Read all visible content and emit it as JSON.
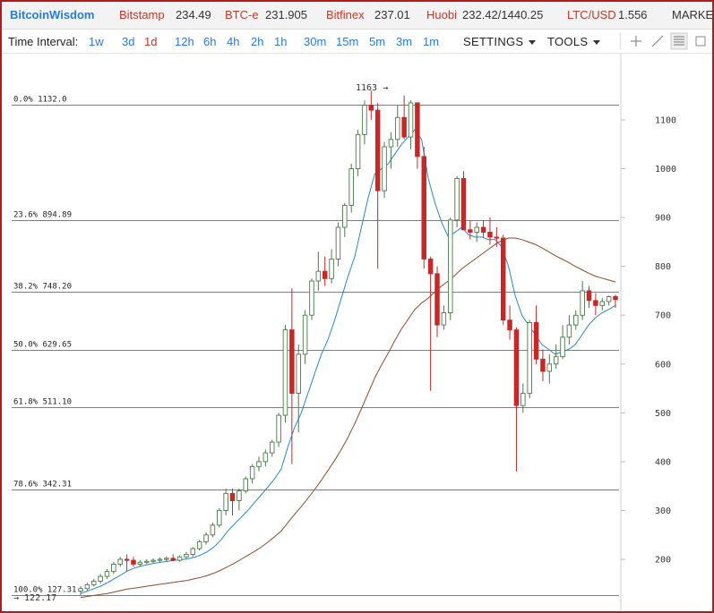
{
  "ticker": {
    "brand": "BitcoinWisdom",
    "exchanges": [
      {
        "name": "Bitstamp",
        "value": "234.49"
      },
      {
        "name": "BTC-e",
        "value": "231.905"
      },
      {
        "name": "Bitfinex",
        "value": "237.01"
      },
      {
        "name": "Huobi",
        "value": "232.42/1440.25"
      },
      {
        "name": "LTC/USD",
        "value": "1.556"
      }
    ],
    "markets": "MARKET"
  },
  "toolbar": {
    "time_interval_label": "Time Interval:",
    "intervals": [
      "1w",
      "3d",
      "1d",
      "12h",
      "6h",
      "4h",
      "2h",
      "1h",
      "30m",
      "15m",
      "5m",
      "3m",
      "1m"
    ],
    "active_interval": "1d",
    "settings_label": "SETTINGS",
    "tools_label": "TOOLS",
    "tool_icons": [
      "crosshair-icon",
      "draw-line-icon",
      "fibonacci-icon"
    ]
  },
  "chart": {
    "peak_marker": "1163",
    "low_marker": "122.17",
    "y_ticks": [
      "1100",
      "1000",
      "900",
      "800",
      "700",
      "600",
      "500",
      "400",
      "300",
      "200"
    ],
    "fib_levels": [
      {
        "label": "0.0% 1132.0",
        "price": 1132.0
      },
      {
        "label": "23.6% 894.89",
        "price": 894.89
      },
      {
        "label": "38.2% 748.20",
        "price": 748.2
      },
      {
        "label": "50.0% 629.65",
        "price": 629.65
      },
      {
        "label": "61.8% 511.10",
        "price": 511.1
      },
      {
        "label": "78.6% 342.31",
        "price": 342.31
      },
      {
        "label": "100.0% 127.31",
        "price": 127.31
      }
    ],
    "colors": {
      "up": "#4a7a4a",
      "down": "#c62828",
      "ema_fast": "#2a86c6",
      "ema_slow": "#8b4a2b"
    }
  },
  "chart_data": {
    "type": "candlestick",
    "title": "",
    "xlabel": "",
    "ylabel": "",
    "ylim": [
      122.17,
      1163
    ],
    "grid": false,
    "candles": [
      {
        "o": 135,
        "h": 145,
        "l": 127,
        "c": 140
      },
      {
        "o": 140,
        "h": 152,
        "l": 136,
        "c": 148
      },
      {
        "o": 148,
        "h": 160,
        "l": 144,
        "c": 155
      },
      {
        "o": 155,
        "h": 170,
        "l": 150,
        "c": 165
      },
      {
        "o": 165,
        "h": 180,
        "l": 160,
        "c": 175
      },
      {
        "o": 175,
        "h": 195,
        "l": 170,
        "c": 190
      },
      {
        "o": 190,
        "h": 205,
        "l": 185,
        "c": 200
      },
      {
        "o": 200,
        "h": 210,
        "l": 175,
        "c": 198
      },
      {
        "o": 198,
        "h": 205,
        "l": 185,
        "c": 190
      },
      {
        "o": 190,
        "h": 198,
        "l": 185,
        "c": 194
      },
      {
        "o": 194,
        "h": 200,
        "l": 190,
        "c": 196
      },
      {
        "o": 196,
        "h": 202,
        "l": 192,
        "c": 198
      },
      {
        "o": 198,
        "h": 204,
        "l": 194,
        "c": 200
      },
      {
        "o": 200,
        "h": 206,
        "l": 196,
        "c": 202
      },
      {
        "o": 202,
        "h": 210,
        "l": 196,
        "c": 198
      },
      {
        "o": 198,
        "h": 208,
        "l": 195,
        "c": 205
      },
      {
        "o": 205,
        "h": 215,
        "l": 200,
        "c": 210
      },
      {
        "o": 210,
        "h": 225,
        "l": 205,
        "c": 222
      },
      {
        "o": 222,
        "h": 240,
        "l": 218,
        "c": 236
      },
      {
        "o": 236,
        "h": 255,
        "l": 230,
        "c": 250
      },
      {
        "o": 250,
        "h": 275,
        "l": 245,
        "c": 270
      },
      {
        "o": 270,
        "h": 305,
        "l": 265,
        "c": 300
      },
      {
        "o": 300,
        "h": 345,
        "l": 290,
        "c": 335
      },
      {
        "o": 335,
        "h": 345,
        "l": 290,
        "c": 320
      },
      {
        "o": 320,
        "h": 345,
        "l": 300,
        "c": 340
      },
      {
        "o": 340,
        "h": 370,
        "l": 335,
        "c": 365
      },
      {
        "o": 365,
        "h": 395,
        "l": 355,
        "c": 390
      },
      {
        "o": 390,
        "h": 410,
        "l": 380,
        "c": 400
      },
      {
        "o": 400,
        "h": 425,
        "l": 390,
        "c": 418
      },
      {
        "o": 418,
        "h": 445,
        "l": 410,
        "c": 440
      },
      {
        "o": 440,
        "h": 500,
        "l": 430,
        "c": 495
      },
      {
        "o": 495,
        "h": 680,
        "l": 480,
        "c": 670
      },
      {
        "o": 670,
        "h": 755,
        "l": 395,
        "c": 540
      },
      {
        "o": 540,
        "h": 640,
        "l": 460,
        "c": 620
      },
      {
        "o": 620,
        "h": 710,
        "l": 600,
        "c": 700
      },
      {
        "o": 700,
        "h": 775,
        "l": 690,
        "c": 770
      },
      {
        "o": 770,
        "h": 830,
        "l": 750,
        "c": 790
      },
      {
        "o": 790,
        "h": 820,
        "l": 760,
        "c": 775
      },
      {
        "o": 775,
        "h": 835,
        "l": 765,
        "c": 815
      },
      {
        "o": 815,
        "h": 890,
        "l": 800,
        "c": 880
      },
      {
        "o": 880,
        "h": 930,
        "l": 860,
        "c": 925
      },
      {
        "o": 925,
        "h": 1010,
        "l": 910,
        "c": 1000
      },
      {
        "o": 1000,
        "h": 1080,
        "l": 985,
        "c": 1070
      },
      {
        "o": 1070,
        "h": 1140,
        "l": 1050,
        "c": 1130
      },
      {
        "o": 1130,
        "h": 1160,
        "l": 1100,
        "c": 1120
      },
      {
        "o": 1120,
        "h": 1135,
        "l": 795,
        "c": 955
      },
      {
        "o": 955,
        "h": 1055,
        "l": 940,
        "c": 1045
      },
      {
        "o": 1045,
        "h": 1075,
        "l": 1000,
        "c": 1060
      },
      {
        "o": 1060,
        "h": 1130,
        "l": 1045,
        "c": 1105
      },
      {
        "o": 1105,
        "h": 1150,
        "l": 1060,
        "c": 1065
      },
      {
        "o": 1065,
        "h": 1140,
        "l": 1040,
        "c": 1135
      },
      {
        "o": 1135,
        "h": 1135,
        "l": 1000,
        "c": 1025
      },
      {
        "o": 1025,
        "h": 1045,
        "l": 795,
        "c": 815
      },
      {
        "o": 815,
        "h": 820,
        "l": 545,
        "c": 785
      },
      {
        "o": 785,
        "h": 800,
        "l": 655,
        "c": 680
      },
      {
        "o": 680,
        "h": 720,
        "l": 670,
        "c": 705
      },
      {
        "o": 705,
        "h": 900,
        "l": 690,
        "c": 895
      },
      {
        "o": 895,
        "h": 985,
        "l": 880,
        "c": 980
      },
      {
        "o": 980,
        "h": 995,
        "l": 875,
        "c": 875
      },
      {
        "o": 875,
        "h": 895,
        "l": 855,
        "c": 870
      },
      {
        "o": 870,
        "h": 890,
        "l": 850,
        "c": 880
      },
      {
        "o": 880,
        "h": 895,
        "l": 860,
        "c": 870
      },
      {
        "o": 870,
        "h": 900,
        "l": 845,
        "c": 860
      },
      {
        "o": 860,
        "h": 880,
        "l": 840,
        "c": 858
      },
      {
        "o": 858,
        "h": 865,
        "l": 680,
        "c": 690
      },
      {
        "o": 690,
        "h": 720,
        "l": 650,
        "c": 670
      },
      {
        "o": 670,
        "h": 675,
        "l": 380,
        "c": 515
      },
      {
        "o": 515,
        "h": 560,
        "l": 500,
        "c": 540
      },
      {
        "o": 540,
        "h": 690,
        "l": 530,
        "c": 685
      },
      {
        "o": 685,
        "h": 720,
        "l": 600,
        "c": 610
      },
      {
        "o": 610,
        "h": 630,
        "l": 565,
        "c": 585
      },
      {
        "o": 585,
        "h": 620,
        "l": 560,
        "c": 600
      },
      {
        "o": 600,
        "h": 640,
        "l": 590,
        "c": 615
      },
      {
        "o": 615,
        "h": 680,
        "l": 610,
        "c": 655
      },
      {
        "o": 655,
        "h": 700,
        "l": 640,
        "c": 680
      },
      {
        "o": 680,
        "h": 710,
        "l": 670,
        "c": 700
      },
      {
        "o": 700,
        "h": 770,
        "l": 690,
        "c": 750
      },
      {
        "o": 750,
        "h": 760,
        "l": 715,
        "c": 730
      },
      {
        "o": 730,
        "h": 745,
        "l": 700,
        "c": 720
      },
      {
        "o": 720,
        "h": 735,
        "l": 710,
        "c": 728
      },
      {
        "o": 728,
        "h": 740,
        "l": 720,
        "c": 738
      },
      {
        "o": 738,
        "h": 742,
        "l": 715,
        "c": 732
      }
    ],
    "ema_fast": [
      130,
      135,
      140,
      145,
      152,
      160,
      168,
      176,
      182,
      186,
      189,
      192,
      194,
      196,
      198,
      199,
      201,
      204,
      209,
      216,
      226,
      240,
      258,
      272,
      286,
      300,
      316,
      332,
      348,
      365,
      385,
      430,
      470,
      500,
      540,
      580,
      620,
      650,
      690,
      735,
      780,
      820,
      880,
      940,
      990,
      1000,
      1010,
      1030,
      1050,
      1065,
      1080,
      1060,
      980,
      930,
      890,
      860,
      870,
      880,
      865,
      860,
      860,
      855,
      855,
      840,
      800,
      740,
      700,
      680,
      660,
      640,
      630,
      620,
      625,
      630,
      640,
      660,
      680,
      695,
      705,
      712,
      720
    ],
    "ema_slow": [
      122,
      124,
      126,
      128,
      130,
      133,
      136,
      139,
      141,
      143,
      145,
      147,
      149,
      151,
      153,
      155,
      157,
      160,
      163,
      167,
      172,
      178,
      185,
      192,
      200,
      208,
      216,
      225,
      235,
      246,
      258,
      275,
      292,
      308,
      325,
      343,
      362,
      382,
      403,
      425,
      450,
      478,
      508,
      540,
      572,
      598,
      622,
      648,
      672,
      692,
      712,
      725,
      735,
      748,
      760,
      770,
      782,
      795,
      805,
      815,
      825,
      835,
      845,
      853,
      858,
      858,
      855,
      850,
      845,
      838,
      830,
      822,
      815,
      808,
      800,
      793,
      786,
      780,
      776,
      772,
      768
    ]
  }
}
